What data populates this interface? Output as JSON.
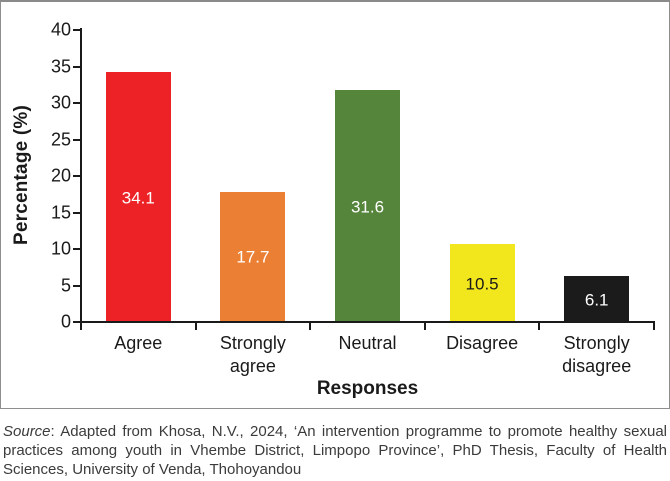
{
  "figure": {
    "source_prefix": "Source",
    "source_text": ": Adapted from Khosa, N.V., 2024, ‘An intervention programme to promote healthy sexual practices among youth in Vhembe District, Limpopo Province’, PhD Thesis, Faculty of Health Sciences, University of Venda, Thohoyandou"
  },
  "chart_data": {
    "type": "bar",
    "title": "",
    "xlabel": "Responses",
    "ylabel": "Percentage (%)",
    "categories": [
      "Agree",
      "Strongly agree",
      "Neutral",
      "Disagree",
      "Strongly disagree"
    ],
    "values": [
      34.1,
      17.7,
      31.6,
      10.5,
      6.1
    ],
    "value_labels": [
      "34.1",
      "17.7",
      "31.6",
      "10.5",
      "6.1"
    ],
    "bar_colors": [
      "#ec2227",
      "#eb8034",
      "#55843b",
      "#f1e71c",
      "#1b1b1b"
    ],
    "value_label_colors": [
      "#ffffff",
      "#ffffff",
      "#ffffff",
      "#1a1a1a",
      "#ffffff"
    ],
    "yticks": [
      0,
      5,
      10,
      15,
      20,
      25,
      30,
      35,
      40
    ],
    "ylim": [
      0,
      40
    ],
    "grid": false,
    "legend": "none",
    "axis_color": "#1a1a1a"
  }
}
